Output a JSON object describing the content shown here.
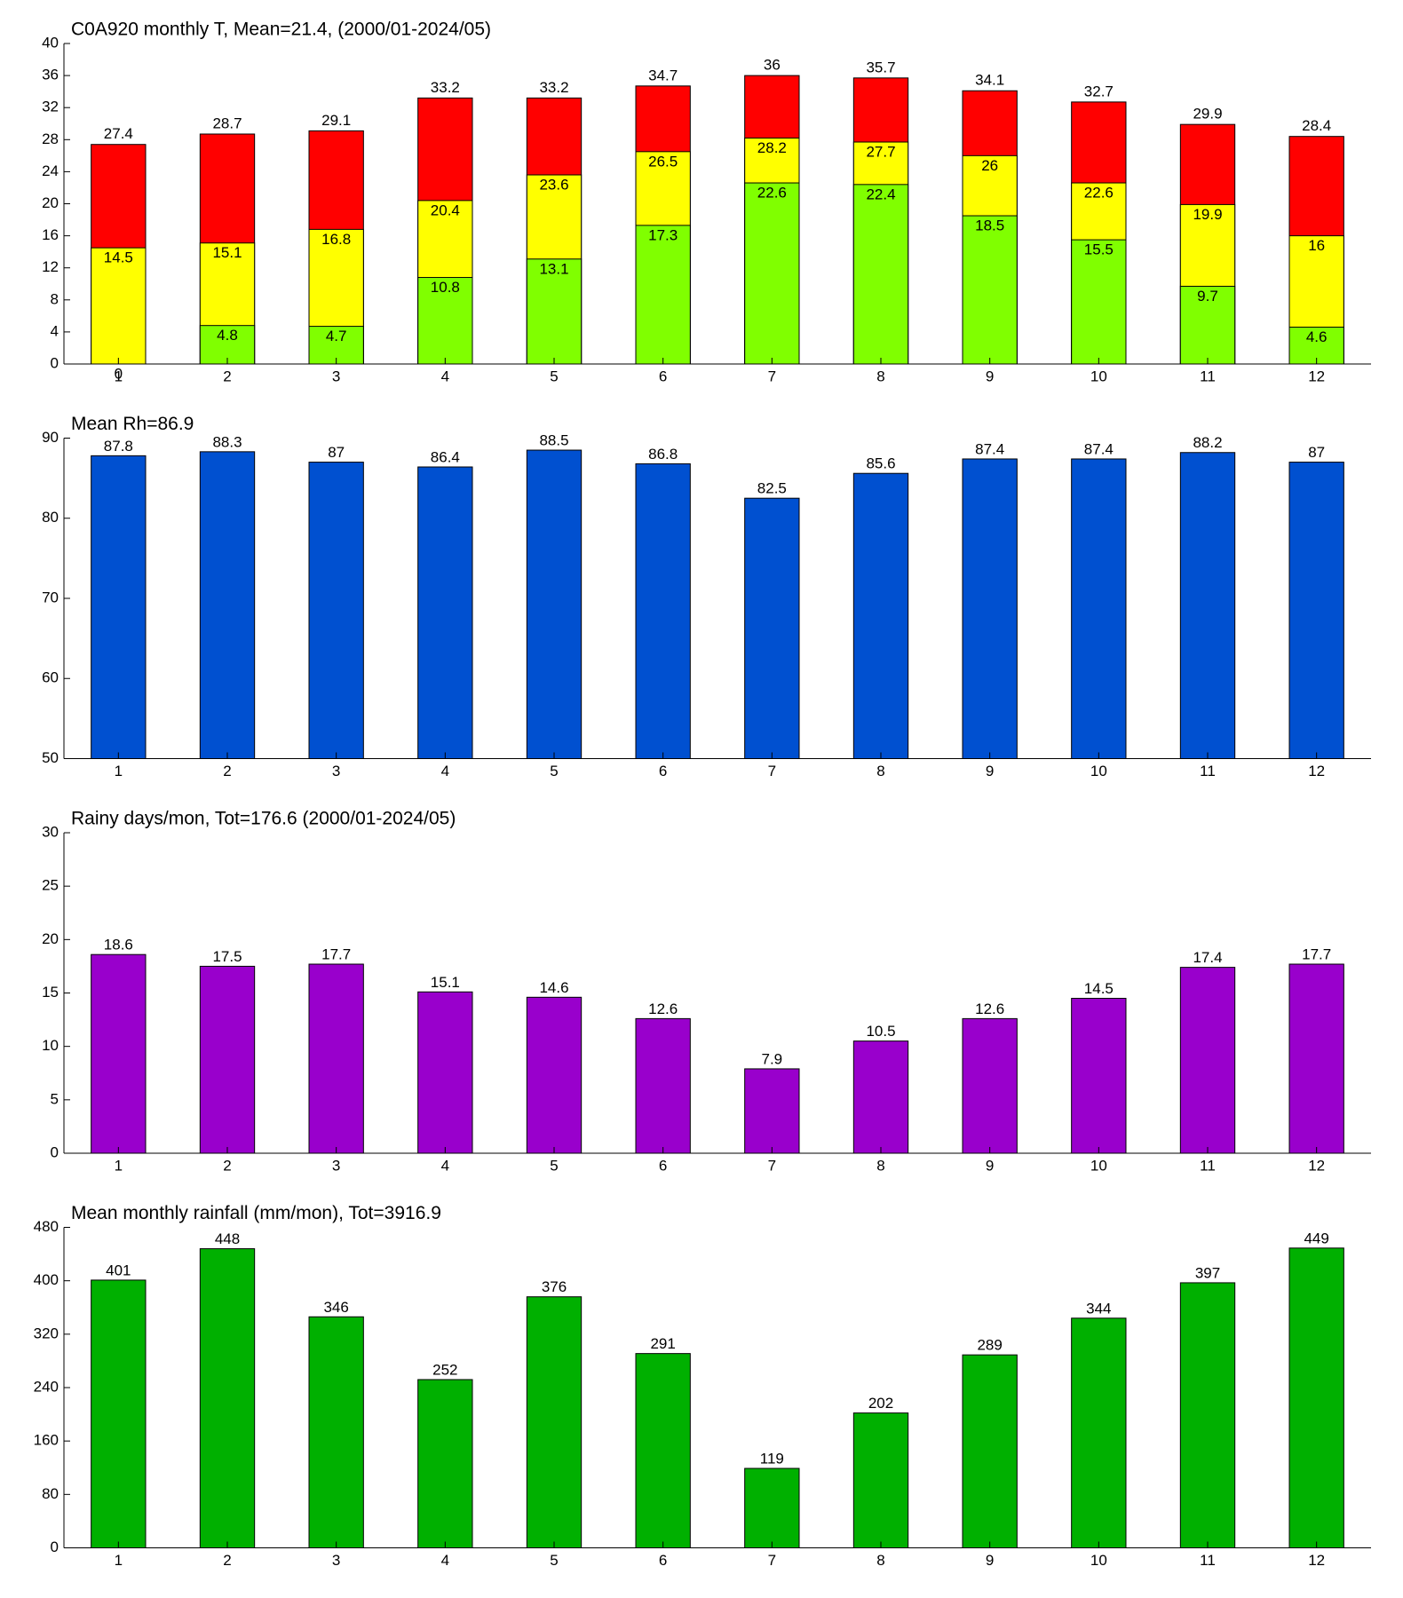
{
  "chart_data": [
    {
      "type": "bar",
      "barmode": "overlay",
      "title": "C0A920 monthly T, Mean=21.4, (2000/01-2024/05)",
      "categories": [
        "1",
        "2",
        "3",
        "4",
        "5",
        "6",
        "7",
        "8",
        "9",
        "10",
        "11",
        "12"
      ],
      "series": [
        {
          "color": "#ff0000",
          "values": [
            27.4,
            28.7,
            29.1,
            33.2,
            33.2,
            34.7,
            36,
            35.7,
            34.1,
            32.7,
            29.9,
            28.4
          ]
        },
        {
          "color": "#ffff00",
          "values": [
            14.5,
            15.1,
            16.8,
            20.4,
            23.6,
            26.5,
            28.2,
            27.7,
            26,
            22.6,
            19.9,
            16
          ]
        },
        {
          "color": "#80ff00",
          "values": [
            0,
            4.8,
            4.7,
            10.8,
            13.1,
            17.3,
            22.6,
            22.4,
            18.5,
            15.5,
            9.7,
            4.6
          ]
        }
      ],
      "ylim": [
        0,
        40
      ],
      "yticks": [
        0,
        4,
        8,
        12,
        16,
        20,
        24,
        28,
        32,
        36,
        40
      ]
    },
    {
      "type": "bar",
      "title": "Mean Rh=86.9",
      "categories": [
        "1",
        "2",
        "3",
        "4",
        "5",
        "6",
        "7",
        "8",
        "9",
        "10",
        "11",
        "12"
      ],
      "values": [
        87.8,
        88.3,
        87,
        86.4,
        88.5,
        86.8,
        82.5,
        85.6,
        87.4,
        87.4,
        88.2,
        87
      ],
      "color": "#0050d0",
      "ylim": [
        50,
        90
      ],
      "yticks": [
        50,
        60,
        70,
        80,
        90
      ]
    },
    {
      "type": "bar",
      "title": "Rainy days/mon, Tot=176.6 (2000/01-2024/05)",
      "categories": [
        "1",
        "2",
        "3",
        "4",
        "5",
        "6",
        "7",
        "8",
        "9",
        "10",
        "11",
        "12"
      ],
      "values": [
        18.6,
        17.5,
        17.7,
        15.1,
        14.6,
        12.6,
        7.9,
        10.5,
        12.6,
        14.5,
        17.4,
        17.7
      ],
      "color": "#9900cc",
      "ylim": [
        0,
        30
      ],
      "yticks": [
        0,
        5,
        10,
        15,
        20,
        25,
        30
      ]
    },
    {
      "type": "bar",
      "title": "Mean monthly rainfall (mm/mon), Tot=3916.9",
      "categories": [
        "1",
        "2",
        "3",
        "4",
        "5",
        "6",
        "7",
        "8",
        "9",
        "10",
        "11",
        "12"
      ],
      "values": [
        401,
        448,
        346,
        252,
        376,
        291,
        119,
        202,
        289,
        344,
        397,
        449
      ],
      "color": "#00b000",
      "ylim": [
        0,
        480
      ],
      "yticks": [
        0,
        80,
        160,
        240,
        320,
        400,
        480
      ]
    }
  ]
}
